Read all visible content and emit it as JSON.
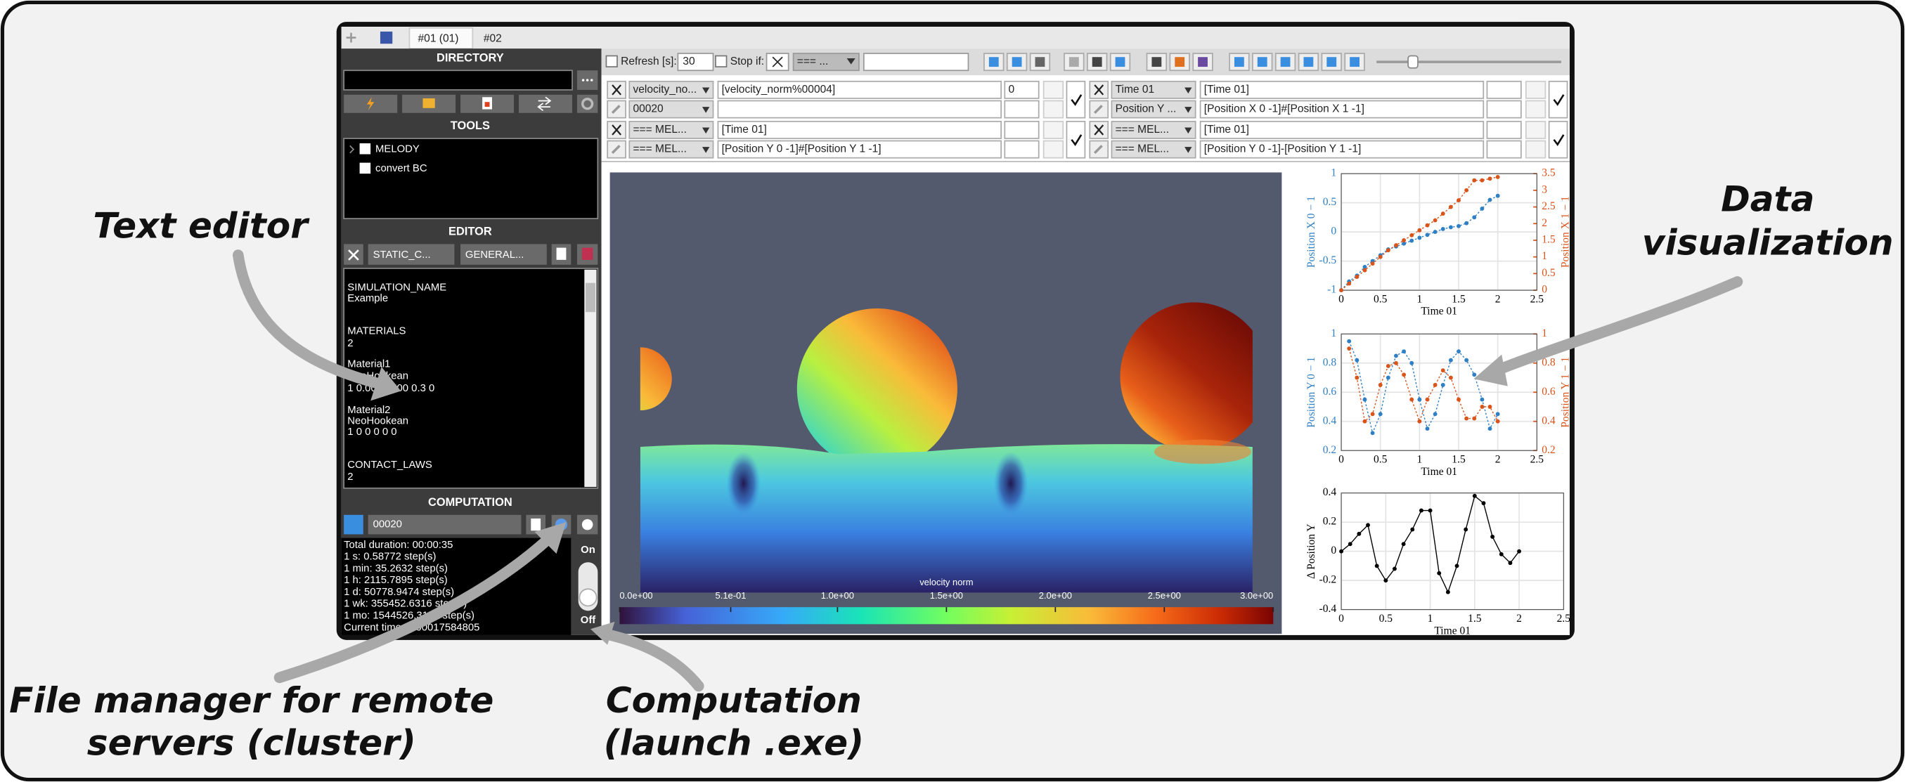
{
  "annotations": {
    "text_editor": "Text editor",
    "data_visualization": [
      "Data",
      "visualization"
    ],
    "file_manager": [
      "File manager for remote",
      "servers (cluster)"
    ],
    "computation": [
      "Computation",
      "(launch .exe)"
    ]
  },
  "tabs": [
    "#01 (01)",
    "#02"
  ],
  "sidebar": {
    "directory_title": "DIRECTORY",
    "tools_title": "TOOLS",
    "tools": [
      "MELODY",
      "convert BC"
    ],
    "editor_title": "EDITOR",
    "editor_tabs": [
      "STATIC_C...",
      "GENERAL..."
    ],
    "editor_text": [
      "SIMULATION_NAME",
      "Example",
      "MATERIALS",
      "2",
      "Material1",
      "NeoHookean",
      "1 0.0001 500 0.3 0",
      "Material2",
      "NeoHookean",
      "1 0 0 0 0 0",
      "CONTACT_LAWS",
      "2"
    ],
    "computation_title": "COMPUTATION",
    "computation_field": "00020",
    "log": [
      "Total duration: 00:00:35",
      "1 s: 0.58772 step(s)",
      "1 min: 35.2632 step(s)",
      "1 h: 2115.7895 step(s)",
      "1 d: 50778.9474 step(s)",
      "1 wk: 355452.6316 step(s)",
      "1 mo: 1544526.3158 step(s)",
      "Current time: 2.00017584805"
    ],
    "switch_on": "On",
    "switch_off": "Off"
  },
  "toolbar": {
    "refresh_label": "Refresh [s]:",
    "refresh_value": "30",
    "stop_label": "Stop if:",
    "stop_select": "=== ..."
  },
  "plot_config": [
    [
      {
        "select": "velocity_no...",
        "expression": "[velocity_norm%00004]",
        "value": "0"
      },
      {
        "select": "00020"
      }
    ],
    [
      {
        "select": "Time 01",
        "expression": "[Time 01]"
      },
      {
        "select": "Position Y ...",
        "expression": "[Position X 0 -1]#[Position X 1 -1]"
      }
    ],
    [
      {
        "select": "=== MEL...",
        "expression": "[Time 01]"
      },
      {
        "select": "=== MEL...",
        "expression": "[Position Y 0 -1]#[Position Y 1 -1]"
      }
    ],
    [
      {
        "select": "=== MEL...",
        "expression": "[Time 01]"
      },
      {
        "select": "=== MEL...",
        "expression": "[Position Y 0 -1]-[Position Y 1 -1]"
      }
    ]
  ],
  "viewport": {
    "colorbar": {
      "title": "velocity norm",
      "lim": [
        0,
        3
      ],
      "ticks": [
        {
          "value": 0,
          "label": "0.0e+00"
        },
        {
          "value": 0.51,
          "label": "5.1e-01"
        },
        {
          "value": 1.0,
          "label": "1.0e+00"
        },
        {
          "value": 1.5,
          "label": "1.5e+00"
        },
        {
          "value": 2.0,
          "label": "2.0e+00"
        },
        {
          "value": 2.5,
          "label": "2.5e+00"
        },
        {
          "value": 3.0,
          "label": "3.0e+00"
        }
      ]
    }
  },
  "chart_data": [
    {
      "type": "line",
      "line_style": "dotted",
      "grid": true,
      "xlabel": "Time 01",
      "ylabel": "Position X 0 − 1",
      "y2label": "Position X 1 − 1",
      "x": [
        0,
        0.1,
        0.2,
        0.3,
        0.4,
        0.5,
        0.6,
        0.7,
        0.8,
        0.9,
        1.0,
        1.1,
        1.2,
        1.3,
        1.4,
        1.5,
        1.6,
        1.7,
        1.8,
        1.9,
        2.0
      ],
      "series": [
        {
          "color": "#2f7fc4",
          "axis": "y",
          "values": [
            -1,
            -0.85,
            -0.75,
            -0.6,
            -0.5,
            -0.4,
            -0.3,
            -0.25,
            -0.2,
            -0.15,
            -0.1,
            -0.05,
            0.0,
            0.05,
            0.08,
            0.1,
            0.15,
            0.25,
            0.4,
            0.55,
            0.62
          ]
        },
        {
          "color": "#d9541a",
          "axis": "y2",
          "values": [
            0,
            0.2,
            0.4,
            0.6,
            0.8,
            1.0,
            1.2,
            1.35,
            1.5,
            1.65,
            1.8,
            1.95,
            2.1,
            2.3,
            2.5,
            2.7,
            3.0,
            3.3,
            3.3,
            3.35,
            3.4
          ]
        }
      ],
      "xlim": [
        0,
        2.5
      ],
      "xticks": [
        0,
        0.5,
        1,
        1.5,
        2,
        2.5
      ],
      "ylim": [
        -1,
        1
      ],
      "yticks": [
        -1,
        -0.5,
        0,
        0.5,
        1
      ],
      "y2lim": [
        0,
        3.5
      ],
      "y2ticks": [
        0,
        0.5,
        1,
        1.5,
        2,
        2.5,
        3,
        3.5
      ]
    },
    {
      "type": "line",
      "line_style": "dotted",
      "grid": true,
      "xlabel": "Time 01",
      "ylabel": "Position Y 0 − 1",
      "y2label": "Position Y 1 − 1",
      "x": [
        0.1,
        0.2,
        0.3,
        0.4,
        0.5,
        0.6,
        0.7,
        0.8,
        0.9,
        1.0,
        1.1,
        1.2,
        1.3,
        1.4,
        1.5,
        1.6,
        1.7,
        1.8,
        1.9,
        2.0
      ],
      "series": [
        {
          "color": "#2f7fc4",
          "axis": "y",
          "values": [
            0.95,
            0.82,
            0.55,
            0.32,
            0.45,
            0.7,
            0.85,
            0.88,
            0.8,
            0.55,
            0.35,
            0.45,
            0.65,
            0.82,
            0.88,
            0.82,
            0.72,
            0.55,
            0.35,
            0.45
          ]
        },
        {
          "color": "#d9541a",
          "axis": "y2",
          "values": [
            0.9,
            0.7,
            0.4,
            0.45,
            0.65,
            0.78,
            0.8,
            0.72,
            0.55,
            0.4,
            0.55,
            0.65,
            0.75,
            0.7,
            0.55,
            0.42,
            0.42,
            0.5,
            0.5,
            0.4
          ]
        }
      ],
      "xlim": [
        0,
        2.5
      ],
      "xticks": [
        0,
        0.5,
        1,
        1.5,
        2,
        2.5
      ],
      "ylim": [
        0.2,
        1
      ],
      "yticks": [
        0.2,
        0.4,
        0.6,
        0.8,
        1
      ],
      "y2lim": [
        0.2,
        1
      ],
      "y2ticks": [
        0.2,
        0.4,
        0.6,
        0.8,
        1
      ]
    },
    {
      "type": "line",
      "line_style": "solid",
      "grid": true,
      "xlabel": "Time 01",
      "ylabel": "Δ Position Y",
      "x": [
        0,
        0.1,
        0.2,
        0.3,
        0.4,
        0.5,
        0.6,
        0.7,
        0.8,
        0.9,
        1.0,
        1.1,
        1.2,
        1.3,
        1.4,
        1.5,
        1.6,
        1.7,
        1.8,
        1.9,
        2.0
      ],
      "series": [
        {
          "color": "#000000",
          "axis": "y",
          "values": [
            0,
            0.05,
            0.12,
            0.18,
            -0.1,
            -0.2,
            -0.12,
            0.05,
            0.15,
            0.28,
            0.28,
            -0.15,
            -0.28,
            -0.1,
            0.15,
            0.38,
            0.33,
            0.1,
            -0.02,
            -0.08,
            0.0
          ]
        }
      ],
      "xlim": [
        0,
        2.5
      ],
      "xticks": [
        0,
        0.5,
        1,
        1.5,
        2,
        2.5
      ],
      "ylim": [
        -0.4,
        0.4
      ],
      "yticks": [
        -0.4,
        -0.2,
        0,
        0.2,
        0.4
      ]
    }
  ]
}
